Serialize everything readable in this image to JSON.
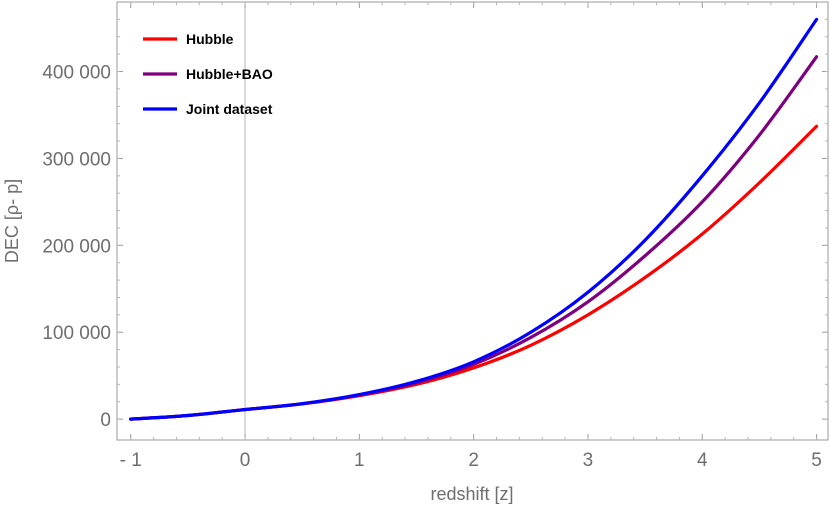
{
  "chart_data": {
    "type": "line",
    "xlabel": "redshift [z]",
    "ylabel": "DEC [ρ- p]",
    "xlim": [
      -1.12,
      5.1
    ],
    "ylim": [
      -24000,
      480000
    ],
    "xticks": [
      -1,
      0,
      1,
      2,
      3,
      4,
      5
    ],
    "xtick_labels": [
      "- 1",
      "0",
      "1",
      "2",
      "3",
      "4",
      "5"
    ],
    "yticks": [
      0,
      100000,
      200000,
      300000,
      400000
    ],
    "ytick_labels": [
      "0",
      "100 000",
      "200 000",
      "300 000",
      "400 000"
    ],
    "legend_position": "top-left",
    "grid": false,
    "x": [
      -1,
      -0.5,
      0,
      0.5,
      1,
      1.5,
      2,
      2.5,
      3,
      3.5,
      4,
      4.5,
      5
    ],
    "series": [
      {
        "name": "Hubble",
        "color": "#ff0000",
        "values": [
          0,
          4200,
          11000,
          17500,
          27000,
          40000,
          59000,
          85000,
          120000,
          163000,
          213000,
          272000,
          337000
        ]
      },
      {
        "name": "Hubble+BAO",
        "color": "#7f007f",
        "values": [
          0,
          4200,
          11000,
          17700,
          27800,
          42000,
          63000,
          94000,
          135000,
          188000,
          250000,
          327000,
          417000
        ]
      },
      {
        "name": "Joint dataset",
        "color": "#0000ff",
        "values": [
          0,
          4200,
          11000,
          17800,
          28300,
          43500,
          66000,
          100000,
          146000,
          206000,
          280000,
          364000,
          460000
        ]
      }
    ]
  }
}
